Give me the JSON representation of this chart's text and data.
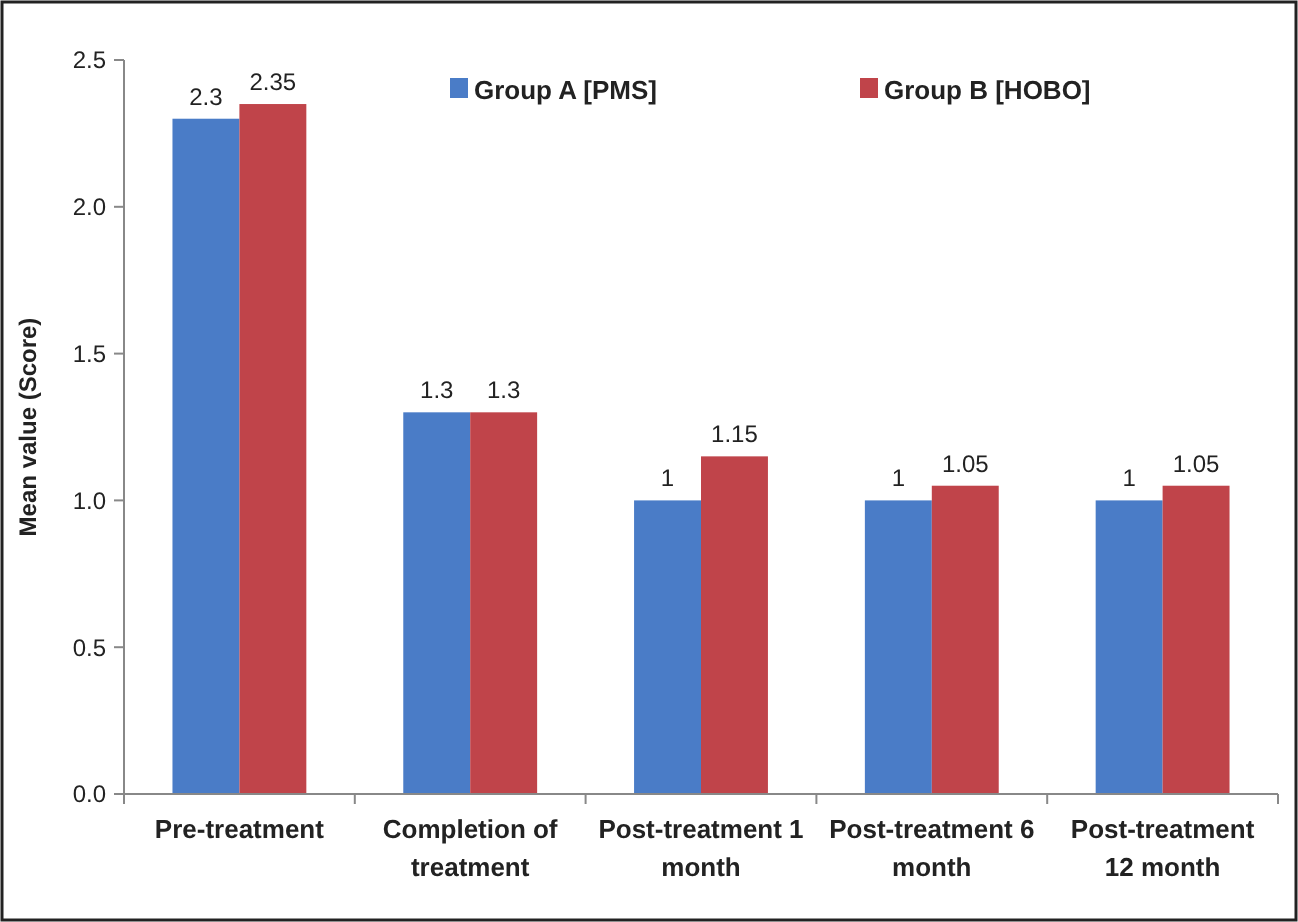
{
  "chart_data": {
    "type": "bar",
    "ylabel": "Mean value (Score)",
    "categories": [
      "Pre-treatment",
      "Completion of treatment",
      "Post-treatment 1 month",
      "Post-treatment 6 month",
      "Post-treatment 12 month"
    ],
    "series": [
      {
        "name": "Group A [PMS]",
        "color": "#4a7cc7",
        "values": [
          2.3,
          1.3,
          1,
          1,
          1
        ]
      },
      {
        "name": "Group B [HOBO]",
        "color": "#c0444a",
        "values": [
          2.35,
          1.3,
          1.15,
          1.05,
          1.05
        ]
      }
    ],
    "ylim": [
      0,
      2.5
    ],
    "yticks": [
      {
        "value": 0,
        "label": "0.0"
      },
      {
        "value": 0.5,
        "label": "0.5"
      },
      {
        "value": 1,
        "label": "1.0"
      },
      {
        "value": 1.5,
        "label": "1.5"
      },
      {
        "value": 2,
        "label": "2.0"
      },
      {
        "value": 2.5,
        "label": "2.5"
      }
    ],
    "data_labels": true,
    "legend": "top",
    "grid": false
  }
}
